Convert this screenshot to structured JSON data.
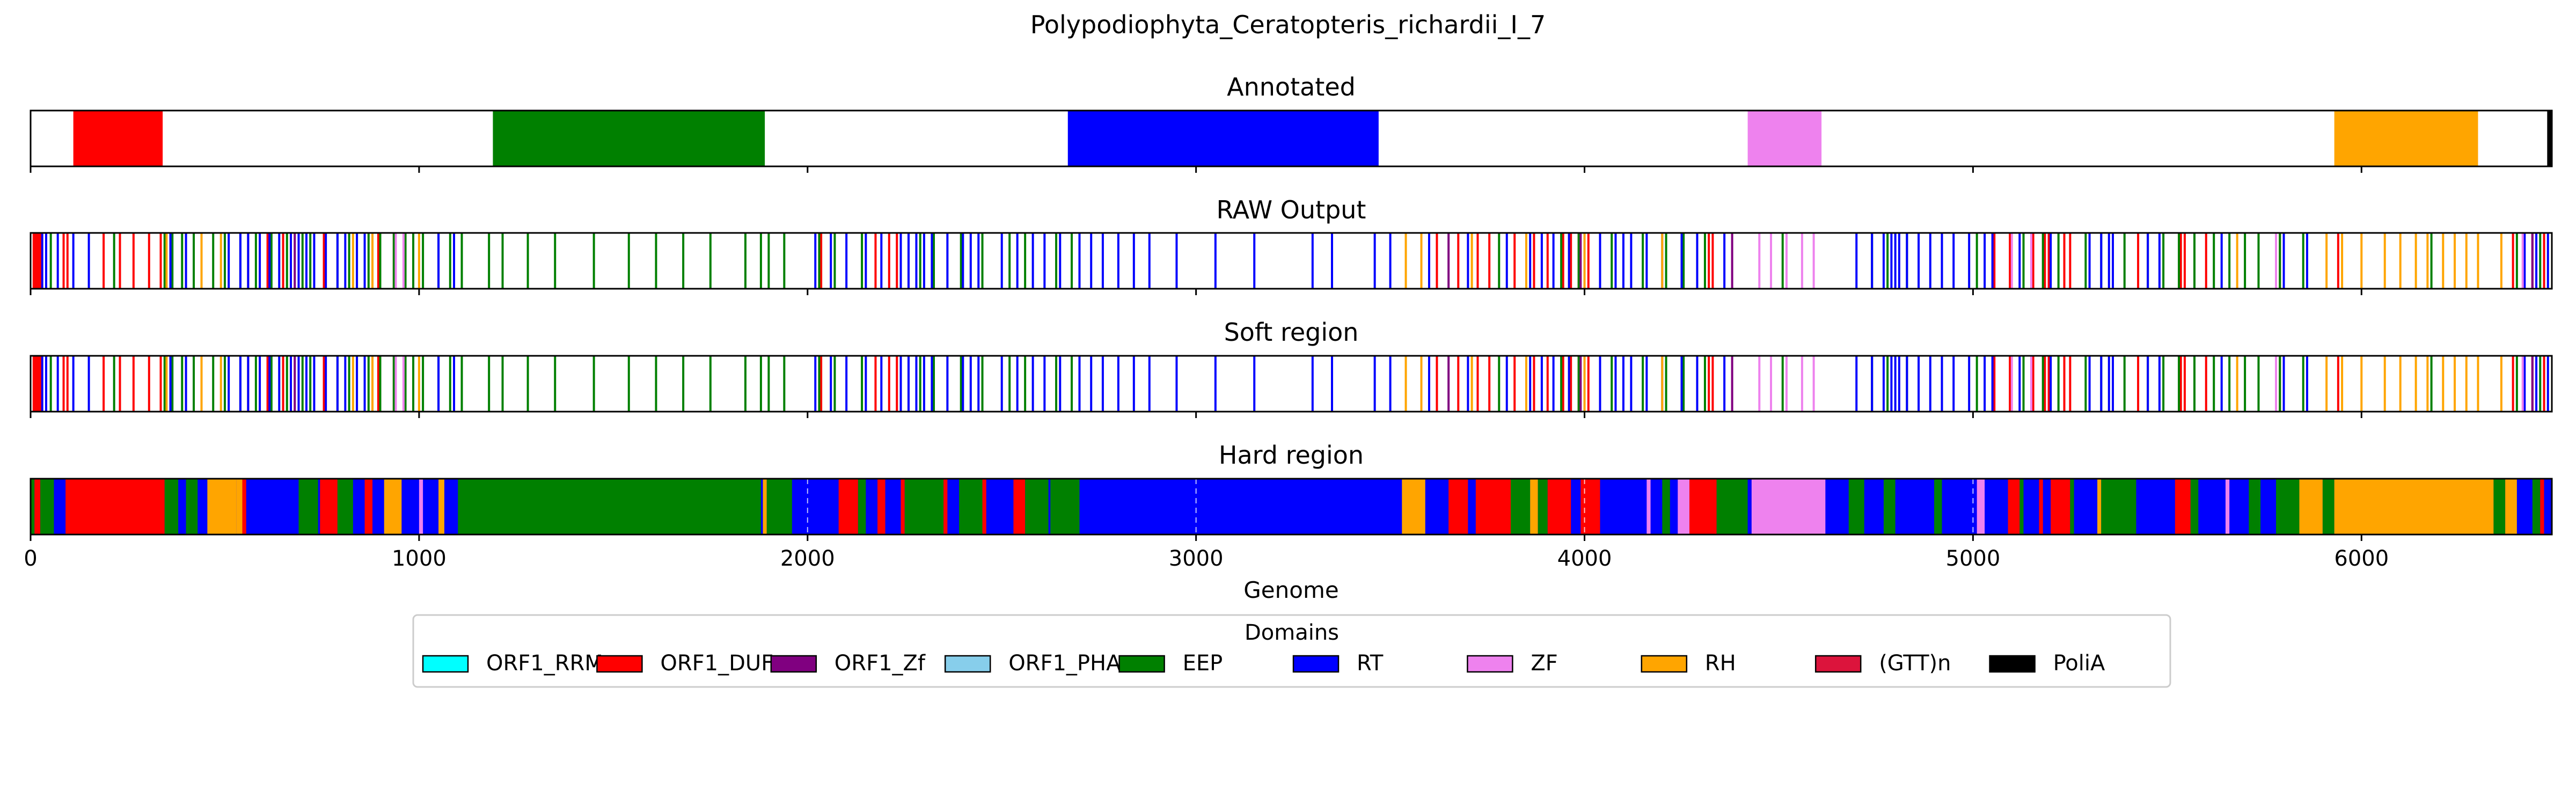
{
  "title": "Polypodiophyta_Ceratopteris_richardii_I_7",
  "colors": {
    "ORF1_RRM": "#00ffff",
    "ORF1_DUF": "#ff0000",
    "ORF1_Zf": "#800080",
    "ORF1_PHA": "#87ceeb",
    "EEP": "#008000",
    "RT": "#0000ff",
    "ZF": "#ee82ee",
    "RH": "#ffa500",
    "(GTT)n": "#dc143c",
    "PoliA": "#000000"
  },
  "chart_data": {
    "type": "genome-track",
    "xlabel": "Genome",
    "xlim": [
      0,
      6490
    ],
    "xticks": [
      0,
      1000,
      2000,
      3000,
      4000,
      5000,
      6000
    ],
    "legend": {
      "title": "Domains",
      "placement": "bottom-center",
      "entries": [
        "ORF1_RRM",
        "ORF1_DUF",
        "ORF1_Zf",
        "ORF1_PHA",
        "EEP",
        "RT",
        "ZF",
        "RH",
        "(GTT)n",
        "PoliA"
      ]
    },
    "tracks": [
      {
        "title": "Annotated",
        "segments": [
          {
            "domain": "ORF1_DUF",
            "start": 110,
            "end": 340
          },
          {
            "domain": "EEP",
            "start": 1190,
            "end": 1890
          },
          {
            "domain": "RT",
            "start": 2670,
            "end": 3470
          },
          {
            "domain": "ZF",
            "start": 4420,
            "end": 4610
          },
          {
            "domain": "RH",
            "start": 5930,
            "end": 6300
          },
          {
            "domain": "PoliA",
            "start": 6478,
            "end": 6490
          }
        ]
      },
      {
        "title": "RAW Output",
        "lines": [
          {
            "domain": "ORF1_DUF",
            "positions": [
              8,
              12,
              16,
              20,
              25,
              85,
              95,
              188,
              230,
              265,
              305,
              335,
              360,
              560,
              610,
              650,
              755,
              895,
              935,
              2035,
              2175,
              2210,
              2230,
              2260,
              3620,
              3675,
              3725,
              3755,
              3820,
              3870,
              3905,
              3945,
              3965,
              3985,
              4010,
              4320,
              4330,
              5055,
              5095,
              5155,
              5185,
              5195,
              5235,
              5250,
              5425,
              5535,
              5545,
              5600,
              5790,
              5940,
              6390,
              6440,
              6470
            ]
          },
          {
            "domain": "EEP",
            "positions": [
              52,
              215,
              345,
              365,
              390,
              420,
              470,
              500,
              540,
              580,
              620,
              660,
              700,
              720,
              790,
              820,
              840,
              870,
              900,
              935,
              965,
              985,
              1010,
              1050,
              1080,
              1110,
              1180,
              1215,
              1280,
              1350,
              1450,
              1540,
              1610,
              1680,
              1750,
              1840,
              1880,
              1900,
              1940,
              2030,
              2070,
              2140,
              2240,
              2290,
              2325,
              2395,
              2450,
              2520,
              2560,
              2640,
              2680,
              3780,
              3940,
              3985,
              4070,
              4150,
              4210,
              4255,
              4310,
              4510,
              4740,
              4780,
              4830,
              5010,
              5130,
              5180,
              5220,
              5290,
              5330,
              5390,
              5450,
              5490,
              5530,
              5570,
              5620,
              5660,
              5700,
              5735,
              5790,
              5850,
              6180,
              6400,
              6460
            ]
          },
          {
            "domain": "RT",
            "positions": [
              30,
              40,
              70,
              110,
              150,
              360,
              400,
              440,
              510,
              540,
              560,
              590,
              615,
              640,
              670,
              690,
              710,
              730,
              760,
              790,
              810,
              840,
              860,
              880,
              1050,
              1090,
              2020,
              2060,
              2100,
              2150,
              2190,
              2240,
              2260,
              2280,
              2300,
              2320,
              2360,
              2400,
              2420,
              2440,
              2500,
              2540,
              2580,
              2610,
              2650,
              2700,
              2730,
              2760,
              2800,
              2840,
              2880,
              2950,
              3050,
              3150,
              3300,
              3350,
              3460,
              3500,
              3600,
              3700,
              3800,
              3860,
              3890,
              3920,
              3960,
              4000,
              4040,
              4080,
              4100,
              4120,
              4160,
              4200,
              4250,
              4290,
              4360,
              4700,
              4740,
              4770,
              4790,
              4800,
              4810,
              4830,
              4860,
              4890,
              4920,
              4950,
              4990,
              5030,
              5050,
              5120,
              5200,
              5300,
              5330,
              5350,
              5360,
              5450,
              5480,
              5640,
              5800,
              5860,
              6420,
              6450,
              6480
            ]
          },
          {
            "domain": "RH",
            "positions": [
              350,
              440,
              490,
              830,
              880,
              1000,
              3540,
              3580,
              3710,
              3850,
              4000,
              4200,
              5680,
              5910,
              5950,
              6000,
              6060,
              6100,
              6140,
              6170,
              6210,
              6240,
              6270,
              6300,
              6360
            ]
          },
          {
            "domain": "ZF",
            "positions": [
              940,
              960,
              4450,
              4480,
              4520,
              4560,
              4590,
              5100,
              5150,
              5780,
              6415
            ]
          },
          {
            "domain": "ORF1_Zf",
            "positions": [
              680,
              3650,
              3990,
              4380,
              6440
            ]
          }
        ]
      },
      {
        "title": "Soft region",
        "lines": "same-as-raw"
      },
      {
        "title": "Hard region",
        "background": "RT",
        "dashes": [
          2000,
          3000,
          4000,
          5000
        ],
        "segments": [
          {
            "domain": "EEP",
            "start": 0,
            "end": 10
          },
          {
            "domain": "ORF1_DUF",
            "start": 10,
            "end": 25
          },
          {
            "domain": "EEP",
            "start": 25,
            "end": 60
          },
          {
            "domain": "ORF1_DUF",
            "start": 90,
            "end": 345
          },
          {
            "domain": "EEP",
            "start": 345,
            "end": 380
          },
          {
            "domain": "EEP",
            "start": 400,
            "end": 430
          },
          {
            "domain": "RH",
            "start": 455,
            "end": 530
          },
          {
            "domain": "RH",
            "start": 530,
            "end": 545
          },
          {
            "domain": "ORF1_DUF",
            "start": 545,
            "end": 555
          },
          {
            "domain": "EEP",
            "start": 690,
            "end": 740
          },
          {
            "domain": "ORF1_DUF",
            "start": 745,
            "end": 790
          },
          {
            "domain": "EEP",
            "start": 790,
            "end": 830
          },
          {
            "domain": "ORF1_DUF",
            "start": 860,
            "end": 880
          },
          {
            "domain": "RH",
            "start": 910,
            "end": 955
          },
          {
            "domain": "ZF",
            "start": 1000,
            "end": 1010
          },
          {
            "domain": "RH",
            "start": 1050,
            "end": 1065
          },
          {
            "domain": "EEP",
            "start": 1100,
            "end": 1880
          },
          {
            "domain": "RH",
            "start": 1885,
            "end": 1895
          },
          {
            "domain": "EEP",
            "start": 1895,
            "end": 1960
          },
          {
            "domain": "ORF1_DUF",
            "start": 2080,
            "end": 2130
          },
          {
            "domain": "EEP",
            "start": 2130,
            "end": 2150
          },
          {
            "domain": "ORF1_DUF",
            "start": 2180,
            "end": 2200
          },
          {
            "domain": "ORF1_DUF",
            "start": 2240,
            "end": 2250
          },
          {
            "domain": "EEP",
            "start": 2250,
            "end": 2350
          },
          {
            "domain": "ORF1_DUF",
            "start": 2350,
            "end": 2360
          },
          {
            "domain": "EEP",
            "start": 2390,
            "end": 2450
          },
          {
            "domain": "ORF1_DUF",
            "start": 2450,
            "end": 2460
          },
          {
            "domain": "ORF1_DUF",
            "start": 2530,
            "end": 2560
          },
          {
            "domain": "EEP",
            "start": 2560,
            "end": 2620
          },
          {
            "domain": "EEP",
            "start": 2625,
            "end": 2700
          },
          {
            "domain": "RH",
            "start": 3530,
            "end": 3590
          },
          {
            "domain": "ORF1_DUF",
            "start": 3650,
            "end": 3700
          },
          {
            "domain": "ORF1_DUF",
            "start": 3720,
            "end": 3810
          },
          {
            "domain": "EEP",
            "start": 3810,
            "end": 3860
          },
          {
            "domain": "RH",
            "start": 3860,
            "end": 3880
          },
          {
            "domain": "EEP",
            "start": 3880,
            "end": 3905
          },
          {
            "domain": "ORF1_DUF",
            "start": 3905,
            "end": 3965
          },
          {
            "domain": "ORF1_DUF",
            "start": 3990,
            "end": 4040
          },
          {
            "domain": "ZF",
            "start": 4160,
            "end": 4170
          },
          {
            "domain": "EEP",
            "start": 4200,
            "end": 4220
          },
          {
            "domain": "ZF",
            "start": 4240,
            "end": 4270
          },
          {
            "domain": "ORF1_DUF",
            "start": 4270,
            "end": 4340
          },
          {
            "domain": "EEP",
            "start": 4340,
            "end": 4420
          },
          {
            "domain": "ZF",
            "start": 4430,
            "end": 4620
          },
          {
            "domain": "EEP",
            "start": 4680,
            "end": 4720
          },
          {
            "domain": "EEP",
            "start": 4770,
            "end": 4800
          },
          {
            "domain": "EEP",
            "start": 4900,
            "end": 4920
          },
          {
            "domain": "ZF",
            "start": 5010,
            "end": 5030
          },
          {
            "domain": "ORF1_DUF",
            "start": 5090,
            "end": 5120
          },
          {
            "domain": "EEP",
            "start": 5120,
            "end": 5130
          },
          {
            "domain": "ORF1_DUF",
            "start": 5170,
            "end": 5180
          },
          {
            "domain": "ORF1_DUF",
            "start": 5200,
            "end": 5250
          },
          {
            "domain": "EEP",
            "start": 5250,
            "end": 5260
          },
          {
            "domain": "RH",
            "start": 5320,
            "end": 5330
          },
          {
            "domain": "EEP",
            "start": 5330,
            "end": 5420
          },
          {
            "domain": "ORF1_DUF",
            "start": 5520,
            "end": 5560
          },
          {
            "domain": "EEP",
            "start": 5560,
            "end": 5580
          },
          {
            "domain": "ZF",
            "start": 5650,
            "end": 5660
          },
          {
            "domain": "EEP",
            "start": 5710,
            "end": 5740
          },
          {
            "domain": "EEP",
            "start": 5780,
            "end": 5840
          },
          {
            "domain": "RH",
            "start": 5840,
            "end": 5900
          },
          {
            "domain": "EEP",
            "start": 5900,
            "end": 5930
          },
          {
            "domain": "RH",
            "start": 5930,
            "end": 6340
          },
          {
            "domain": "EEP",
            "start": 6340,
            "end": 6370
          },
          {
            "domain": "RH",
            "start": 6370,
            "end": 6400
          },
          {
            "domain": "EEP",
            "start": 6440,
            "end": 6460
          },
          {
            "domain": "ORF1_DUF",
            "start": 6460,
            "end": 6470
          }
        ]
      }
    ]
  }
}
